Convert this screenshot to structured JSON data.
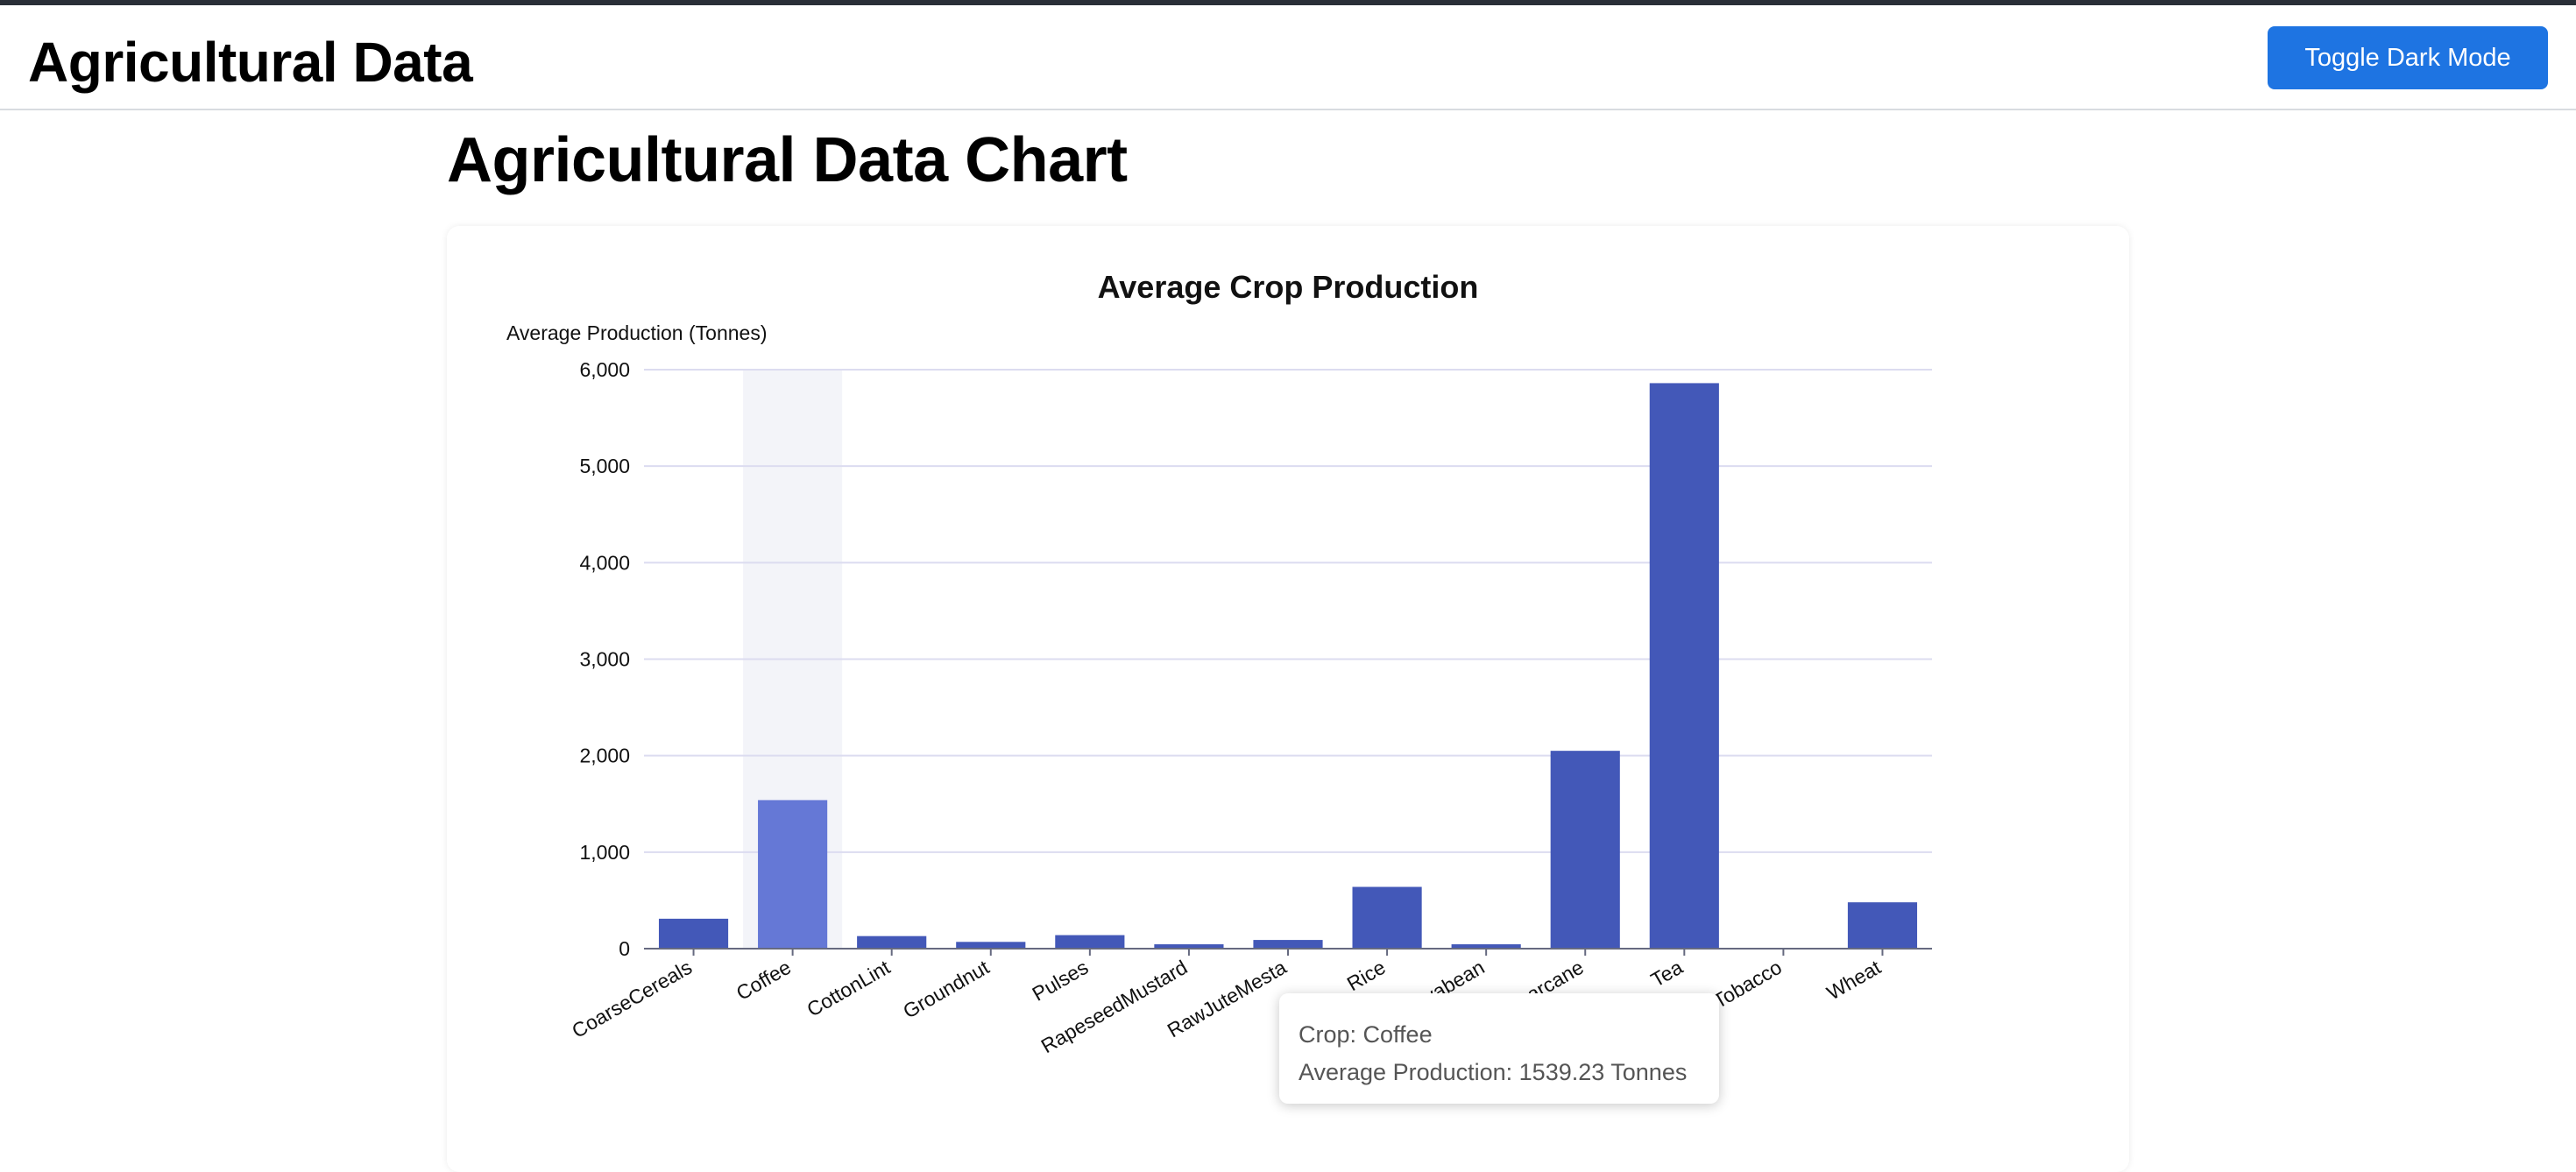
{
  "header": {
    "title": "Agricultural Data",
    "toggle_label": "Toggle Dark Mode"
  },
  "page": {
    "heading": "Agricultural Data Chart"
  },
  "tooltip": {
    "crop_line": "Crop: Coffee",
    "value_line": "Average Production: 1539.23 Tonnes"
  },
  "colors": {
    "bar": "#4358b8",
    "bar_highlight": "#6578d6",
    "hover_band": "#f3f4f9",
    "grid": "#dcdcf0",
    "accent": "#1e74e2"
  },
  "chart_data": {
    "type": "bar",
    "title": "Average Crop Production",
    "xlabel": "",
    "ylabel": "Average Production (Tonnes)",
    "ylim": [
      0,
      6000
    ],
    "yticks": [
      "0",
      "1,000",
      "2,000",
      "3,000",
      "4,000",
      "5,000",
      "6,000"
    ],
    "categories": [
      "CoarseCereals",
      "Coffee",
      "CottonLint",
      "Groundnut",
      "Pulses",
      "RapeseedMustard",
      "RawJuteMesta",
      "Rice",
      "Soyabean",
      "Sugarcane",
      "Tea",
      "Tobacco",
      "Wheat"
    ],
    "values": [
      310,
      1539.23,
      130,
      70,
      140,
      45,
      90,
      640,
      45,
      2050,
      5860,
      8,
      480
    ],
    "highlighted_category": "Coffee",
    "grid": true,
    "legend": "none"
  }
}
